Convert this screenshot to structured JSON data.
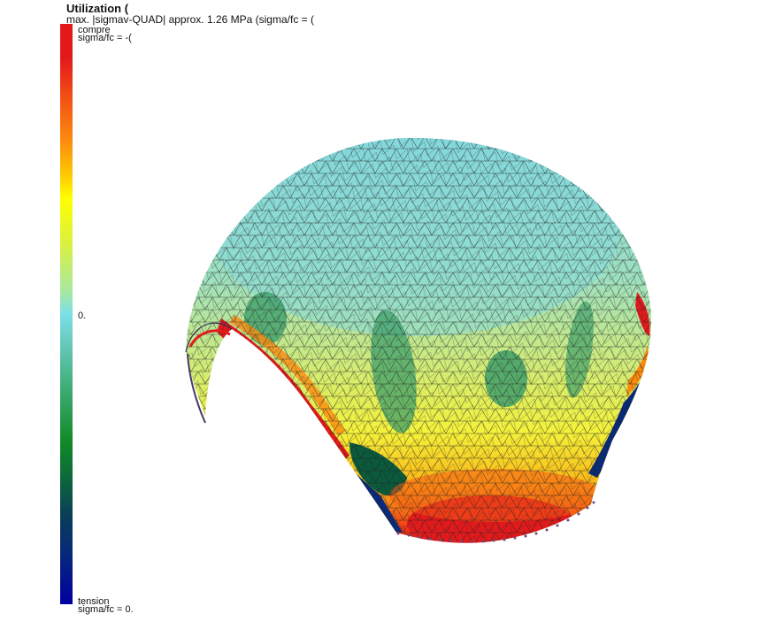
{
  "title": "Utilization (",
  "subtitle": "max. |sigmav-QUAD| approx. 1.26 MPa (sigma/fc = (",
  "colorbar": {
    "top_label_1": "compre",
    "top_label_2": "sigma/fc = -(",
    "mid_label": "0.",
    "bottom_label_1": "tension",
    "bottom_label_2": "sigma/fc = 0."
  },
  "colors": {
    "compression_max": "#e31a1c",
    "neutral": "#7ddfe8",
    "tension_max": "#0000a0",
    "mesh_line": "#1a1a1a"
  }
}
